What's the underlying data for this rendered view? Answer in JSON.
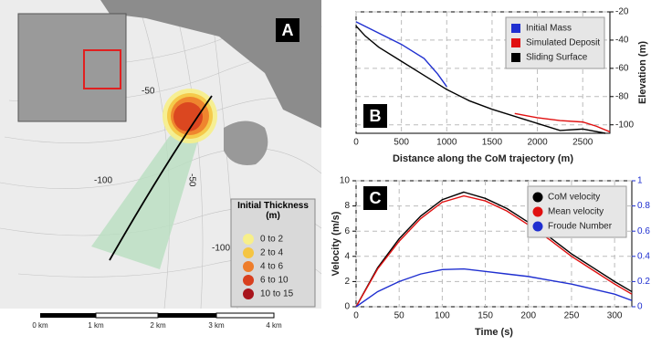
{
  "map": {
    "label": "A",
    "contour_labels": [
      "-50",
      "-100",
      "-50",
      "-100"
    ],
    "legend": {
      "title": "Initial Thickness (m)",
      "items": [
        {
          "label": "0  to  2",
          "color": "#f7ef8a"
        },
        {
          "label": "2  to  4",
          "color": "#f5c542"
        },
        {
          "label": "4  to  6",
          "color": "#ee7d2b"
        },
        {
          "label": "6  to  10",
          "color": "#d8401f"
        },
        {
          "label": "10  to  15",
          "color": "#a8141c"
        }
      ]
    },
    "scale_bar": [
      "0 km",
      "1 km",
      "2 km",
      "3 km",
      "4 km"
    ]
  },
  "chart_data": [
    {
      "type": "line",
      "label": "B",
      "x_label": "Distance along the CoM trajectory (m)",
      "y_label": "Elevation (m)",
      "y_axis_side": "right",
      "grid": true,
      "legend": "upper right",
      "xlim": [
        0,
        2800
      ],
      "xticks": [
        0,
        500,
        1000,
        1500,
        2000,
        2500
      ],
      "ylim": [
        -106,
        -20
      ],
      "yticks": [
        -20,
        -40,
        -60,
        -80,
        -100
      ],
      "series": [
        {
          "name": "Initial Mass",
          "color": "#1f2fd0",
          "x": [
            0,
            250,
            500,
            750,
            900,
            1000
          ],
          "values": [
            -27,
            -35,
            -43,
            -53,
            -64,
            -73
          ]
        },
        {
          "name": "Simulated Deposit",
          "color": "#e01010",
          "x": [
            1750,
            2000,
            2250,
            2500,
            2650,
            2800
          ],
          "values": [
            -92,
            -95,
            -97,
            -98,
            -101,
            -105
          ]
        },
        {
          "name": "Sliding Surface",
          "color": "#000000",
          "x": [
            0,
            100,
            250,
            500,
            750,
            1000,
            1250,
            1500,
            1750,
            2000,
            2250,
            2500,
            2750
          ],
          "values": [
            -30,
            -37,
            -45,
            -55,
            -65,
            -75,
            -83,
            -89,
            -94,
            -99,
            -104,
            -103,
            -106
          ]
        }
      ]
    },
    {
      "type": "line",
      "label": "C",
      "x_label": "Time (s)",
      "y_label": "Velocity (m/s)",
      "y2_label": "Froude Number",
      "y_axis_side": "left",
      "grid": true,
      "legend": "upper right",
      "xlim": [
        0,
        320
      ],
      "xticks": [
        0,
        50,
        100,
        150,
        200,
        250,
        300
      ],
      "ylim": [
        0,
        10
      ],
      "yticks": [
        0,
        2,
        4,
        6,
        8,
        10
      ],
      "y2lim": [
        0,
        1
      ],
      "y2ticks": [
        0,
        0.2,
        0.4,
        0.6,
        0.8,
        1
      ],
      "x": [
        0,
        25,
        50,
        75,
        100,
        125,
        150,
        175,
        200,
        225,
        250,
        275,
        300,
        320
      ],
      "series": [
        {
          "name": "CoM velocity",
          "color": "#000000",
          "values": [
            0,
            3.1,
            5.4,
            7.2,
            8.5,
            9.1,
            8.6,
            7.8,
            6.7,
            5.5,
            4.2,
            3.1,
            2.0,
            1.2
          ]
        },
        {
          "name": "Mean velocity",
          "color": "#e01010",
          "values": [
            0,
            3,
            5.2,
            7,
            8.3,
            8.8,
            8.4,
            7.6,
            6.5,
            5.3,
            4.0,
            2.9,
            1.8,
            1.0
          ]
        },
        {
          "name": "Froude Number",
          "color": "#1f2fd0",
          "axis": "y2",
          "values": [
            0,
            0.12,
            0.2,
            0.26,
            0.295,
            0.3,
            0.28,
            0.26,
            0.24,
            0.21,
            0.18,
            0.14,
            0.1,
            0.05
          ]
        }
      ]
    }
  ]
}
